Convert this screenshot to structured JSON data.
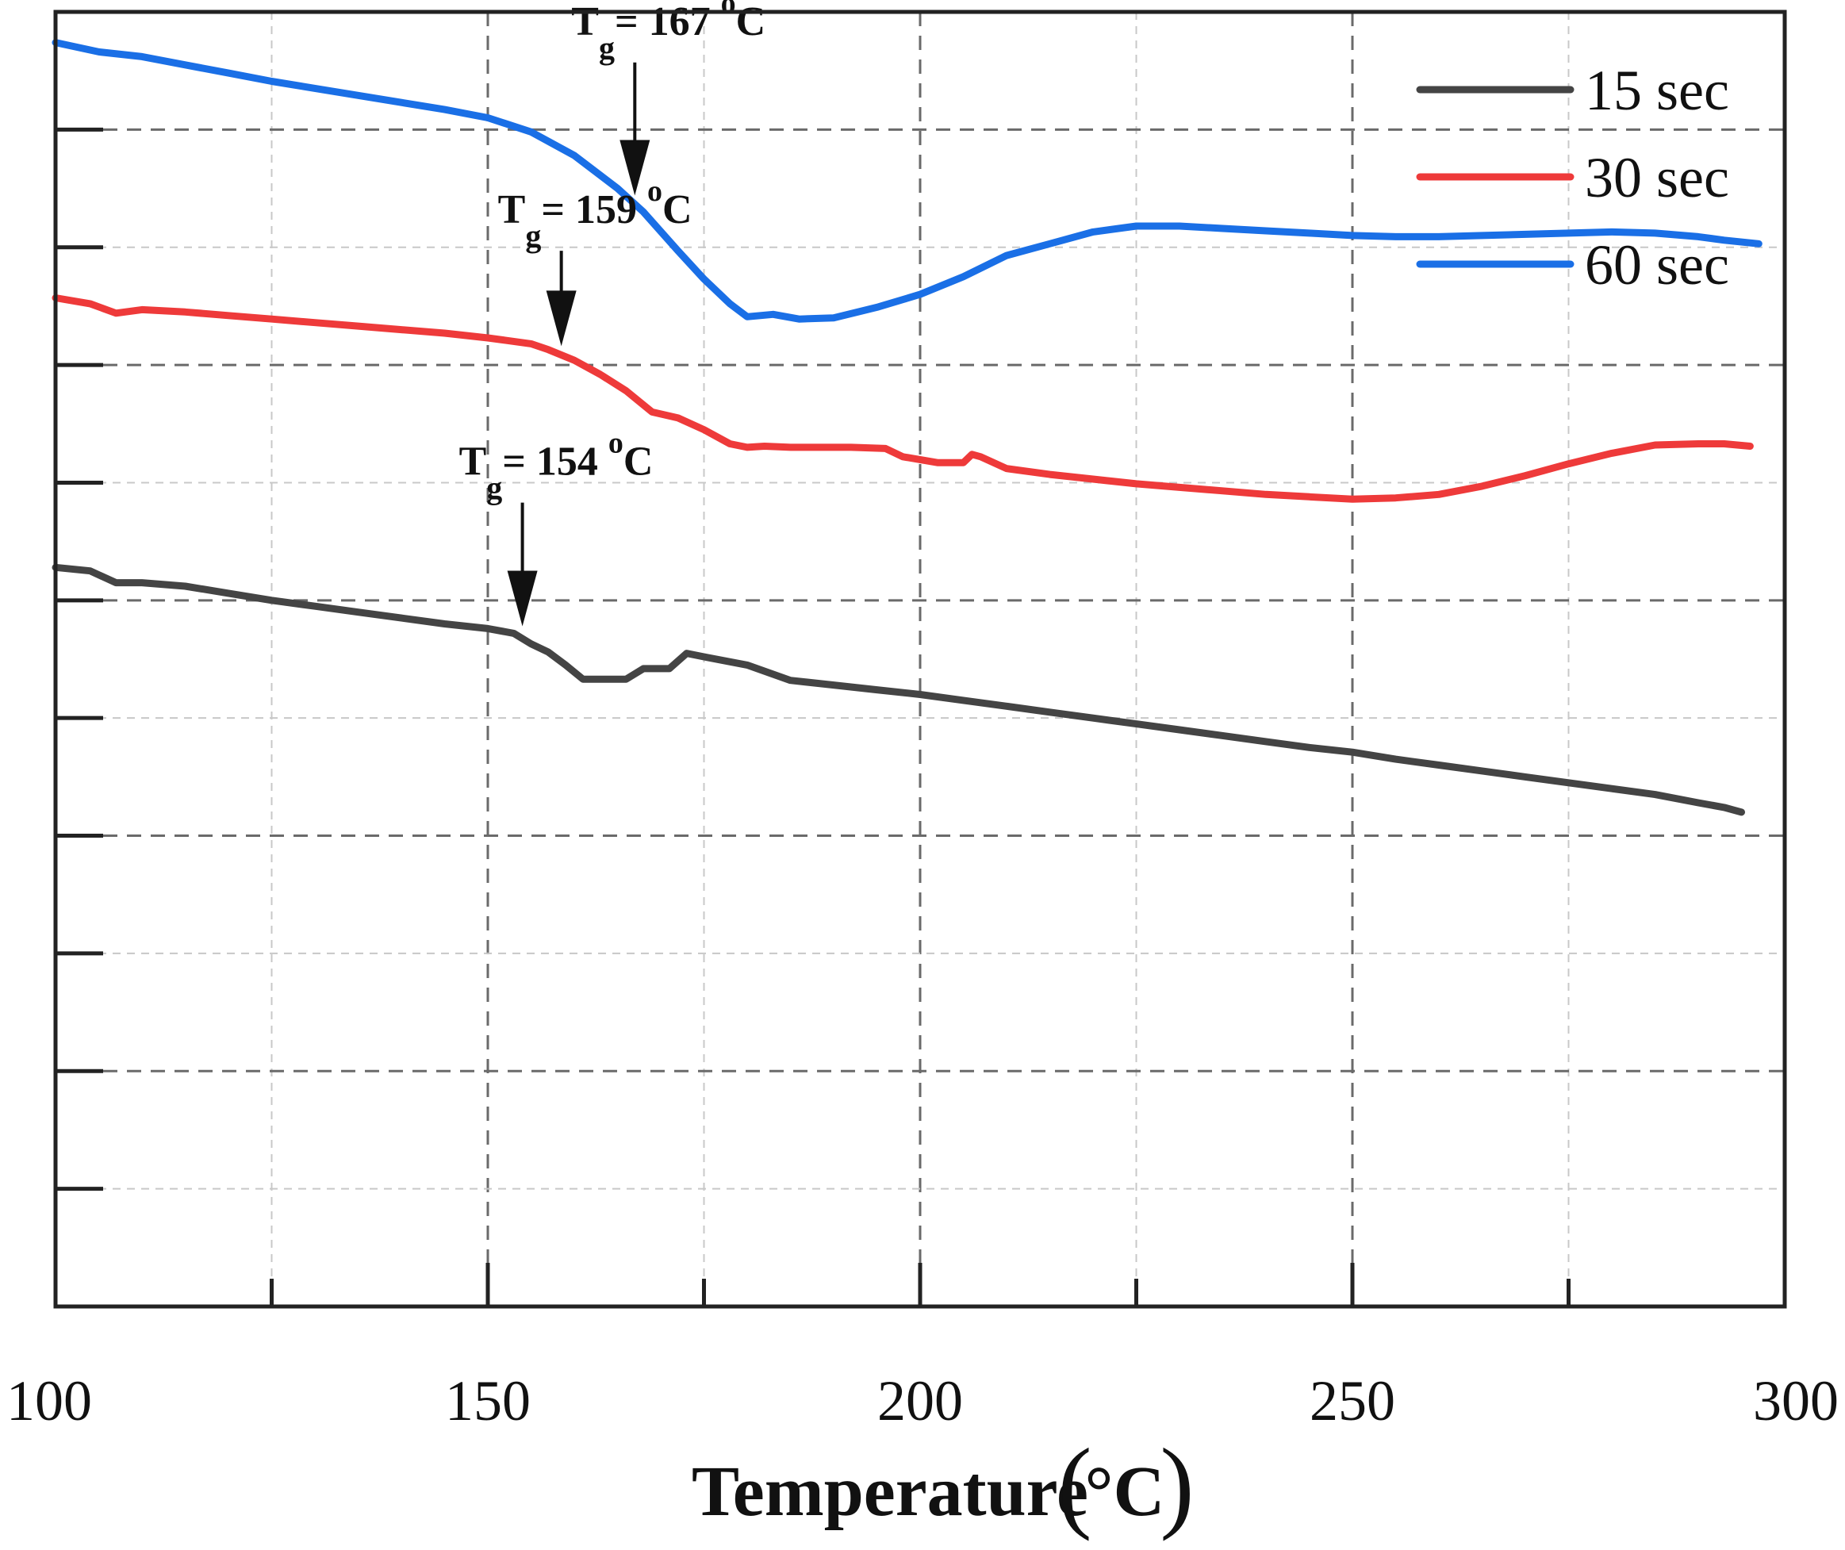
{
  "chart_data": {
    "type": "line",
    "title": "",
    "xlabel": "Temperature",
    "xlabel_unit": "°C",
    "ylabel": "",
    "xlim": [
      100,
      300
    ],
    "x_ticks": [
      "100",
      "150",
      "200",
      "250",
      "300"
    ],
    "grid": true,
    "legend_position": "top-right",
    "series": [
      {
        "name": "15 sec",
        "color": "#444444",
        "points": [
          [
            100,
            6.28
          ],
          [
            104,
            6.25
          ],
          [
            107,
            6.15
          ],
          [
            110,
            6.15
          ],
          [
            115,
            6.12
          ],
          [
            120,
            6.06
          ],
          [
            125,
            6.0
          ],
          [
            130,
            5.95
          ],
          [
            135,
            5.9
          ],
          [
            140,
            5.85
          ],
          [
            145,
            5.8
          ],
          [
            150,
            5.76
          ],
          [
            153,
            5.72
          ],
          [
            155,
            5.63
          ],
          [
            157,
            5.56
          ],
          [
            159,
            5.45
          ],
          [
            161,
            5.33
          ],
          [
            163,
            5.33
          ],
          [
            166,
            5.33
          ],
          [
            168,
            5.42
          ],
          [
            171,
            5.42
          ],
          [
            173,
            5.55
          ],
          [
            175,
            5.52
          ],
          [
            180,
            5.45
          ],
          [
            185,
            5.32
          ],
          [
            190,
            5.28
          ],
          [
            195,
            5.24
          ],
          [
            200,
            5.2
          ],
          [
            205,
            5.15
          ],
          [
            210,
            5.1
          ],
          [
            215,
            5.05
          ],
          [
            220,
            5.0
          ],
          [
            225,
            4.95
          ],
          [
            230,
            4.9
          ],
          [
            235,
            4.85
          ],
          [
            240,
            4.8
          ],
          [
            245,
            4.75
          ],
          [
            250,
            4.71
          ],
          [
            255,
            4.65
          ],
          [
            260,
            4.6
          ],
          [
            265,
            4.55
          ],
          [
            270,
            4.5
          ],
          [
            275,
            4.45
          ],
          [
            280,
            4.4
          ],
          [
            285,
            4.35
          ],
          [
            290,
            4.28
          ],
          [
            293,
            4.24
          ],
          [
            295,
            4.2
          ]
        ]
      },
      {
        "name": "30 sec",
        "color": "#ee3a3a",
        "points": [
          [
            100,
            8.57
          ],
          [
            104,
            8.52
          ],
          [
            107,
            8.44
          ],
          [
            110,
            8.47
          ],
          [
            115,
            8.45
          ],
          [
            120,
            8.42
          ],
          [
            125,
            8.39
          ],
          [
            130,
            8.36
          ],
          [
            135,
            8.33
          ],
          [
            140,
            8.3
          ],
          [
            145,
            8.27
          ],
          [
            150,
            8.23
          ],
          [
            152,
            8.21
          ],
          [
            155,
            8.18
          ],
          [
            157,
            8.13
          ],
          [
            160,
            8.04
          ],
          [
            163,
            7.92
          ],
          [
            166,
            7.78
          ],
          [
            169,
            7.6
          ],
          [
            172,
            7.55
          ],
          [
            175,
            7.45
          ],
          [
            178,
            7.33
          ],
          [
            180,
            7.3
          ],
          [
            182,
            7.31
          ],
          [
            185,
            7.3
          ],
          [
            188,
            7.3
          ],
          [
            192,
            7.3
          ],
          [
            196,
            7.29
          ],
          [
            198,
            7.22
          ],
          [
            202,
            7.17
          ],
          [
            205,
            7.17
          ],
          [
            206,
            7.24
          ],
          [
            207,
            7.22
          ],
          [
            210,
            7.12
          ],
          [
            215,
            7.07
          ],
          [
            220,
            7.03
          ],
          [
            225,
            6.99
          ],
          [
            230,
            6.96
          ],
          [
            235,
            6.93
          ],
          [
            240,
            6.9
          ],
          [
            245,
            6.88
          ],
          [
            250,
            6.86
          ],
          [
            255,
            6.87
          ],
          [
            260,
            6.9
          ],
          [
            265,
            6.97
          ],
          [
            270,
            7.06
          ],
          [
            275,
            7.16
          ],
          [
            280,
            7.25
          ],
          [
            285,
            7.32
          ],
          [
            290,
            7.33
          ],
          [
            293,
            7.33
          ],
          [
            296,
            7.31
          ]
        ]
      },
      {
        "name": "60 sec",
        "color": "#1a6fe6",
        "points": [
          [
            100,
            10.74
          ],
          [
            105,
            10.66
          ],
          [
            110,
            10.62
          ],
          [
            115,
            10.55
          ],
          [
            120,
            10.48
          ],
          [
            125,
            10.41
          ],
          [
            130,
            10.35
          ],
          [
            135,
            10.29
          ],
          [
            140,
            10.23
          ],
          [
            145,
            10.17
          ],
          [
            150,
            10.1
          ],
          [
            155,
            9.98
          ],
          [
            160,
            9.78
          ],
          [
            165,
            9.5
          ],
          [
            168,
            9.3
          ],
          [
            172,
            8.97
          ],
          [
            175,
            8.73
          ],
          [
            178,
            8.52
          ],
          [
            180,
            8.41
          ],
          [
            183,
            8.43
          ],
          [
            186,
            8.39
          ],
          [
            190,
            8.4
          ],
          [
            195,
            8.49
          ],
          [
            200,
            8.6
          ],
          [
            205,
            8.75
          ],
          [
            210,
            8.93
          ],
          [
            215,
            9.03
          ],
          [
            220,
            9.13
          ],
          [
            225,
            9.18
          ],
          [
            230,
            9.18
          ],
          [
            235,
            9.16
          ],
          [
            240,
            9.14
          ],
          [
            245,
            9.12
          ],
          [
            250,
            9.1
          ],
          [
            255,
            9.09
          ],
          [
            260,
            9.09
          ],
          [
            265,
            9.1
          ],
          [
            270,
            9.11
          ],
          [
            275,
            9.12
          ],
          [
            280,
            9.13
          ],
          [
            285,
            9.12
          ],
          [
            290,
            9.09
          ],
          [
            293,
            9.06
          ],
          [
            297,
            9.03
          ]
        ]
      }
    ],
    "annotations": [
      {
        "label_main": "T",
        "label_sub": "g",
        "label_rest": "= 167 ",
        "label_sup": "o",
        "label_unit": "C",
        "x": 167,
        "arrow_from": 10.57,
        "arrow_to": 9.44
      },
      {
        "label_main": "T",
        "label_sub": "g",
        "label_rest": "= 159 ",
        "label_sup": "o",
        "label_unit": "C",
        "x": 158.5,
        "arrow_from": 8.97,
        "arrow_to": 8.16
      },
      {
        "label_main": "T",
        "label_sub": "g",
        "label_rest": "= 154 ",
        "label_sup": "o",
        "label_unit": "C",
        "x": 154,
        "arrow_from": 6.83,
        "arrow_to": 5.78
      }
    ]
  }
}
